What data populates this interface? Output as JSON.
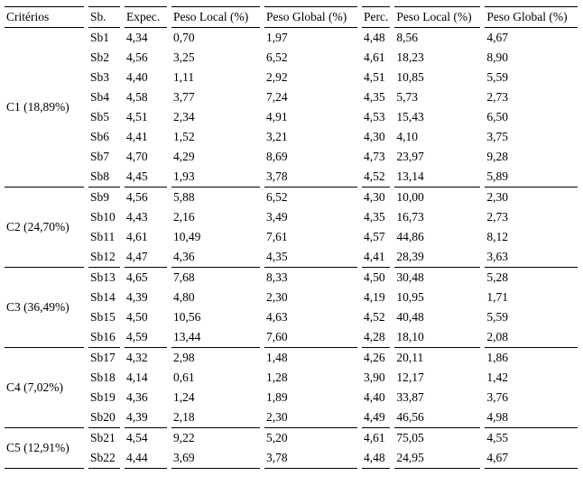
{
  "table": {
    "headers": [
      "Critérios",
      "Sb.",
      "Expec.",
      "Peso Local (%)",
      "Peso Global (%)",
      "Perc.",
      "Peso Local (%)",
      "Peso Global (%)"
    ],
    "groups": [
      {
        "label": "C1 (18,89%)",
        "rows": [
          [
            "Sb1",
            "4,34",
            "0,70",
            "1,97",
            "4,48",
            "8,56",
            "4,67"
          ],
          [
            "Sb2",
            "4,56",
            "3,25",
            "6,52",
            "4,61",
            "18,23",
            "8,90"
          ],
          [
            "Sb3",
            "4,40",
            "1,11",
            "2,92",
            "4,51",
            "10,85",
            "5,59"
          ],
          [
            "Sb4",
            "4,58",
            "3,77",
            "7,24",
            "4,35",
            "5,73",
            "2,73"
          ],
          [
            "Sb5",
            "4,51",
            "2,34",
            "4,91",
            "4,53",
            "15,43",
            "6,50"
          ],
          [
            "Sb6",
            "4,41",
            "1,52",
            "3,21",
            "4,30",
            "4,10",
            "3,75"
          ],
          [
            "Sb7",
            "4,70",
            "4,29",
            "8,69",
            "4,73",
            "23,97",
            "9,28"
          ],
          [
            "Sb8",
            "4,45",
            "1,93",
            "3,78",
            "4,52",
            "13,14",
            "5,89"
          ]
        ]
      },
      {
        "label": "C2 (24,70%)",
        "rows": [
          [
            "Sb9",
            "4,56",
            "5,88",
            "6,52",
            "4,30",
            "10,00",
            "2,30"
          ],
          [
            "Sb10",
            "4,43",
            "2,16",
            "3,49",
            "4,35",
            "16,73",
            "2,73"
          ],
          [
            "Sb11",
            "4,61",
            "10,49",
            "7,61",
            "4,57",
            "44,86",
            "8,12"
          ],
          [
            "Sb12",
            "4,47",
            "4,36",
            "4,35",
            "4,41",
            "28,39",
            "3,63"
          ]
        ]
      },
      {
        "label": "C3 (36,49%)",
        "rows": [
          [
            "Sb13",
            "4,65",
            "7,68",
            "8,33",
            "4,50",
            "30,48",
            "5,28"
          ],
          [
            "Sb14",
            "4,39",
            "4,80",
            "2,30",
            "4,19",
            "10,95",
            "1,71"
          ],
          [
            "Sb15",
            "4,50",
            "10,56",
            "4,63",
            "4,52",
            "40,48",
            "5,59"
          ],
          [
            "Sb16",
            "4,59",
            "13,44",
            "7,60",
            "4,28",
            "18,10",
            "2,08"
          ]
        ]
      },
      {
        "label": "C4 (7,02%)",
        "rows": [
          [
            "Sb17",
            "4,32",
            "2,98",
            "1,48",
            "4,26",
            "20,11",
            "1,86"
          ],
          [
            "Sb18",
            "4,14",
            "0,61",
            "1,28",
            "3,90",
            "12,17",
            "1,42"
          ],
          [
            "Sb19",
            "4,36",
            "1,24",
            "1,89",
            "4,40",
            "33,87",
            "3,76"
          ],
          [
            "Sb20",
            "4,39",
            "2,18",
            "2,30",
            "4,49",
            "46,56",
            "4,98"
          ]
        ]
      },
      {
        "label": "C5 (12,91%)",
        "rows": [
          [
            "Sb21",
            "4,54",
            "9,22",
            "5,20",
            "4,61",
            "75,05",
            "4,55"
          ],
          [
            "Sb22",
            "4,44",
            "3,69",
            "3,78",
            "4,48",
            "24,95",
            "4,67"
          ]
        ]
      }
    ]
  }
}
